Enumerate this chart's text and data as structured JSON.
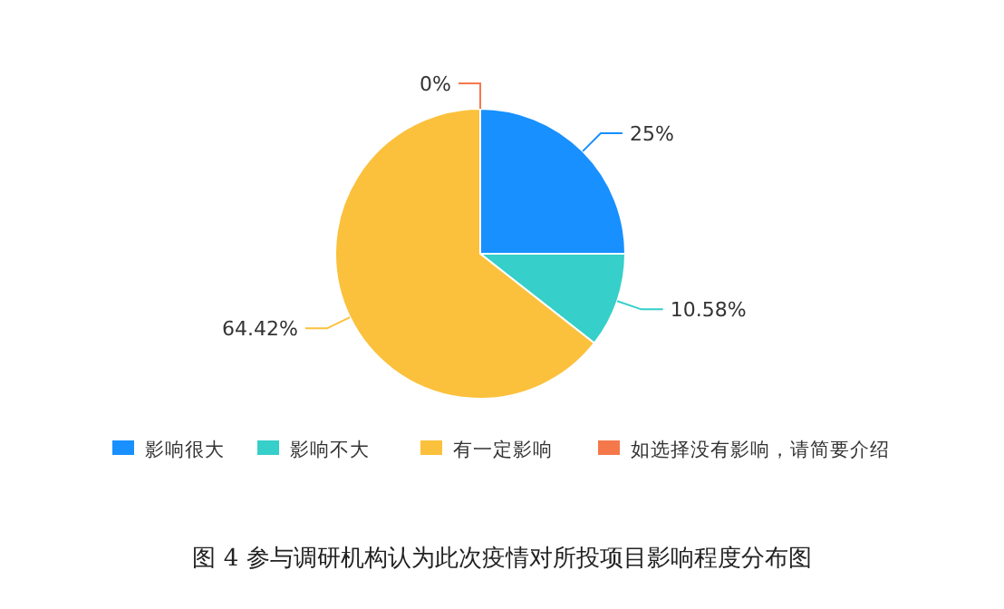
{
  "chart_data": {
    "type": "pie",
    "categories": [
      "影响很大",
      "影响不大",
      "有一定影响",
      "如选择没有影响，请简要介绍"
    ],
    "values": [
      25,
      10.58,
      64.42,
      0
    ],
    "value_labels": [
      "25%",
      "10.58%",
      "64.42%",
      "0%"
    ],
    "colors": [
      "#1890ff",
      "#36cfc9",
      "#fbc13c",
      "#f5784b"
    ],
    "legend": "bottom",
    "annotations": [
      "图 4  参与调研机构认为此次疫情对所投项目影响程度分布图"
    ]
  }
}
